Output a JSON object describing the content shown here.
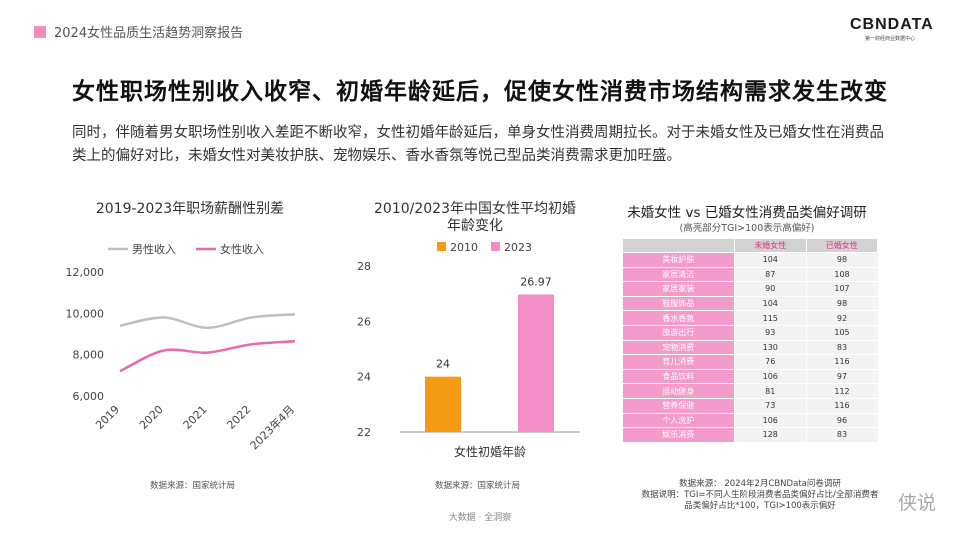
{
  "header": {
    "report_title": "2024女性品质生活趋势洞察报告",
    "logo_text": "CBNDATA",
    "logo_sub": "第一财经商业数据中心"
  },
  "headline": "女性职场性别收入收窄、初婚年龄延后，促使女性消费市场结构需求发生改变",
  "intro": "同时，伴随着男女职场性别收入差距不断收窄，女性初婚年龄延后，单身女性消费周期拉长。对于未婚女性及已婚女性在消费品类上的偏好对比，未婚女性对美妆护肤、宠物娱乐、香水香氛等悦己型品类消费需求更加旺盛。",
  "colors": {
    "male_line": "#bfbfbf",
    "female_line": "#e86aaa",
    "bar_2010": "#f49a14",
    "bar_2023": "#f28dc6",
    "accent": "#f08dbf"
  },
  "chart_data": [
    {
      "type": "line",
      "title": "2019-2023年职场薪酬性别差",
      "categories": [
        "2019",
        "2020",
        "2021",
        "2022",
        "2023年4月"
      ],
      "series": [
        {
          "name": "男性收入",
          "values": [
            9400,
            9800,
            9300,
            9800,
            9950
          ]
        },
        {
          "name": "女性收入",
          "values": [
            7200,
            8200,
            8100,
            8500,
            8650
          ]
        }
      ],
      "ytick_labels": [
        "6,000",
        "8,000",
        "10,000",
        "12,000"
      ],
      "yticks": [
        6000,
        8000,
        10000,
        12000
      ],
      "ylim": [
        6000,
        12000
      ],
      "legend": "top",
      "grid": false,
      "source": "数据来源：国家统计局"
    },
    {
      "type": "bar",
      "title": "2010/2023年中国女性平均初婚年龄变化",
      "categories": [
        "女性初婚年龄"
      ],
      "series": [
        {
          "name": "2010",
          "values": [
            24
          ]
        },
        {
          "name": "2023",
          "values": [
            26.97
          ]
        }
      ],
      "data_labels": [
        "24",
        "26.97"
      ],
      "yticks": [
        22,
        24,
        26,
        28
      ],
      "ylim": [
        22,
        28
      ],
      "legend": "top",
      "grid": false,
      "source": "数据来源：国家统计局"
    },
    {
      "type": "table",
      "title": "未婚女性 vs 已婚女性消费品类偏好调研",
      "subtitle": "(高亮部分TGI>100表示高偏好)",
      "columns": [
        "",
        "未婚女性",
        "已婚女性"
      ],
      "rows": [
        [
          "美妆护肤",
          "104",
          "98"
        ],
        [
          "家居清洁",
          "87",
          "108"
        ],
        [
          "家居家装",
          "90",
          "107"
        ],
        [
          "鞋服饰品",
          "104",
          "98"
        ],
        [
          "香水香氛",
          "115",
          "92"
        ],
        [
          "旅游出行",
          "93",
          "105"
        ],
        [
          "宠物消费",
          "130",
          "83"
        ],
        [
          "育儿消费",
          "76",
          "116"
        ],
        [
          "食品饮料",
          "106",
          "97"
        ],
        [
          "运动健身",
          "81",
          "112"
        ],
        [
          "营养保健",
          "73",
          "116"
        ],
        [
          "个人洗护",
          "106",
          "96"
        ],
        [
          "娱乐消费",
          "128",
          "83"
        ]
      ]
    }
  ],
  "notes": {
    "source": "数据来源： 2024年2月CBNData问卷调研",
    "explain": "数据说明：TGI=不同人生阶段消费者品类偏好占比/全部消费者品类偏好占比*100，TGI>100表示偏好"
  },
  "footer": "大数据 · 全洞察",
  "watermark": "侠说"
}
